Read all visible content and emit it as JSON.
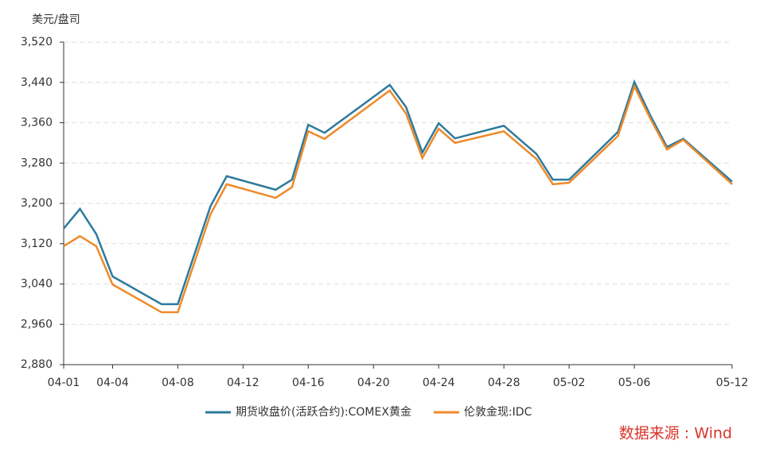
{
  "chart_data": {
    "type": "line",
    "y_label": "美元/盘司",
    "source": "数据来源 : Wind",
    "x": [
      "04-01",
      "04-02",
      "04-03",
      "04-04",
      "04-07",
      "04-08",
      "04-10",
      "04-11",
      "04-14",
      "04-15",
      "04-16",
      "04-17",
      "04-21",
      "04-22",
      "04-23",
      "04-24",
      "04-25",
      "04-28",
      "04-30",
      "05-01",
      "05-02",
      "05-05",
      "05-06",
      "05-07",
      "05-08",
      "05-09",
      "05-12"
    ],
    "xlim": [
      "04-01",
      "05-12"
    ],
    "xticks": [
      "04-01",
      "04-04",
      "04-08",
      "04-12",
      "04-16",
      "04-20",
      "04-24",
      "04-28",
      "05-02",
      "05-06",
      "05-12"
    ],
    "series": [
      {
        "name": "期货收盘价(活跃合约):COMEX黄金",
        "color": "#2e7a9c",
        "values": [
          3150,
          3189,
          3139,
          3055,
          3000,
          3000,
          3194,
          3254,
          3227,
          3247,
          3356,
          3340,
          3435,
          3391,
          3301,
          3359,
          3329,
          3354,
          3298,
          3247,
          3247,
          3342,
          3441,
          3373,
          3312,
          3328,
          3243
        ]
      },
      {
        "name": "伦敦金现:IDC",
        "color": "#ee8a2a",
        "values": [
          3115,
          3135,
          3115,
          3039,
          2984,
          2984,
          3178,
          3238,
          3211,
          3232,
          3343,
          3328,
          3424,
          3378,
          3290,
          3348,
          3320,
          3343,
          3288,
          3238,
          3241,
          3334,
          3432,
          3367,
          3307,
          3326,
          3238
        ]
      }
    ],
    "ylim": [
      2880,
      3520
    ],
    "yticks": [
      {
        "value": 2880,
        "label": "2,880"
      },
      {
        "value": 2960,
        "label": "2,960"
      },
      {
        "value": 3040,
        "label": "3,040"
      },
      {
        "value": 3120,
        "label": "3,120"
      },
      {
        "value": 3200,
        "label": "3,200"
      },
      {
        "value": 3280,
        "label": "3,280"
      },
      {
        "value": 3360,
        "label": "3,360"
      },
      {
        "value": 3440,
        "label": "3,440"
      },
      {
        "value": 3520,
        "label": "3,520"
      }
    ],
    "grid": true
  }
}
